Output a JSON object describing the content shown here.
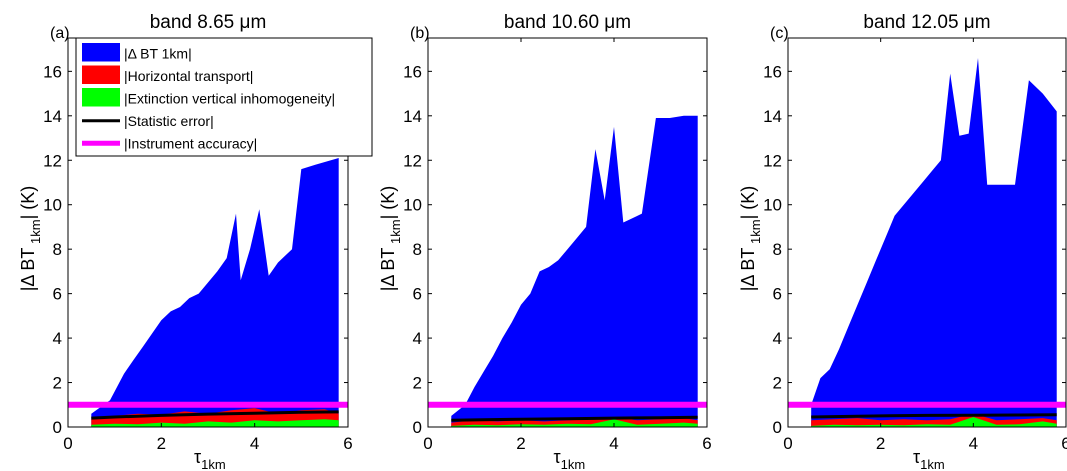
{
  "chart_data": [
    {
      "type": "area",
      "panel_label": "(a)",
      "title": "band 8.65   μm",
      "xlabel": "τ",
      "xlabel_sub": "1km",
      "ylabel": "|Δ BT",
      "ylabel_sub": "1km",
      "ylabel_tail": "| (K)",
      "xlim": [
        0,
        6
      ],
      "ylim": [
        0,
        17.5
      ],
      "xticks": [
        "0",
        "2",
        "4",
        "6"
      ],
      "yticks": [
        "0",
        "2",
        "4",
        "6",
        "8",
        "10",
        "12",
        "14",
        "16"
      ],
      "series": [
        {
          "name": "|Δ BT 1km|",
          "color": "#0000ff",
          "x": [
            0.5,
            0.9,
            1.0,
            1.2,
            1.4,
            1.6,
            1.8,
            2.0,
            2.2,
            2.4,
            2.6,
            2.8,
            3.0,
            3.2,
            3.4,
            3.6,
            3.7,
            3.9,
            4.1,
            4.3,
            4.5,
            4.8,
            5.0,
            5.3,
            5.8
          ],
          "y": [
            0.6,
            1.2,
            1.6,
            2.4,
            3.0,
            3.6,
            4.2,
            4.8,
            5.2,
            5.4,
            5.8,
            6.0,
            6.5,
            7.0,
            7.6,
            9.6,
            6.6,
            8.0,
            9.8,
            6.8,
            7.4,
            8.0,
            11.6,
            11.8,
            12.1
          ]
        },
        {
          "name": "|Horizontal transport|",
          "color": "#ff0000",
          "x": [
            0.5,
            1.0,
            1.5,
            2.0,
            2.5,
            3.0,
            3.5,
            4.0,
            4.5,
            5.0,
            5.5,
            5.8
          ],
          "y": [
            0.35,
            0.5,
            0.6,
            0.55,
            0.7,
            0.6,
            0.75,
            0.85,
            0.6,
            0.75,
            0.8,
            0.6
          ]
        },
        {
          "name": "|Extinction vertical inhomogeneity|",
          "color": "#00ff00",
          "x": [
            0.5,
            1.0,
            1.5,
            2.0,
            2.5,
            3.0,
            3.5,
            4.0,
            4.5,
            5.0,
            5.5,
            5.8
          ],
          "y": [
            0.1,
            0.15,
            0.12,
            0.2,
            0.15,
            0.25,
            0.2,
            0.3,
            0.25,
            0.3,
            0.35,
            0.3
          ]
        },
        {
          "name": "|Statistic error|",
          "color": "#000000",
          "x": [
            0.5,
            1.0,
            2.0,
            3.0,
            4.0,
            5.0,
            5.8
          ],
          "y": [
            0.4,
            0.45,
            0.52,
            0.58,
            0.62,
            0.66,
            0.68
          ]
        },
        {
          "name": "|Instrument accuracy|",
          "color": "#ff00ff",
          "x": [
            0.0,
            6.0
          ],
          "y": [
            1.0,
            1.0
          ]
        }
      ],
      "legend": [
        "|Δ BT 1km|",
        "|Horizontal transport|",
        "|Extinction vertical inhomogeneity|",
        "|Statistic error|",
        "|Instrument accuracy|"
      ],
      "legend_location": "top-left"
    },
    {
      "type": "area",
      "panel_label": "(b)",
      "title": "band 10.60   μm",
      "xlabel": "τ",
      "xlabel_sub": "1km",
      "ylabel": "|Δ BT",
      "ylabel_sub": "1km",
      "ylabel_tail": "| (K)",
      "xlim": [
        0,
        6
      ],
      "ylim": [
        0,
        17.5
      ],
      "xticks": [
        "0",
        "2",
        "4",
        "6"
      ],
      "yticks": [
        "0",
        "2",
        "4",
        "6",
        "8",
        "10",
        "12",
        "14",
        "16"
      ],
      "series": [
        {
          "name": "|Δ BT 1km|",
          "color": "#0000ff",
          "x": [
            0.5,
            0.8,
            1.0,
            1.2,
            1.4,
            1.6,
            1.8,
            2.0,
            2.2,
            2.4,
            2.6,
            2.8,
            3.0,
            3.2,
            3.4,
            3.6,
            3.8,
            4.0,
            4.2,
            4.4,
            4.6,
            4.9,
            5.2,
            5.5,
            5.8
          ],
          "y": [
            0.5,
            1.0,
            1.8,
            2.5,
            3.2,
            4.0,
            4.7,
            5.5,
            6.0,
            7.0,
            7.2,
            7.5,
            8.0,
            8.5,
            9.0,
            12.5,
            10.2,
            13.5,
            9.2,
            9.4,
            9.6,
            13.9,
            13.9,
            14.0,
            14.0
          ]
        },
        {
          "name": "|Horizontal transport|",
          "color": "#ff0000",
          "x": [
            0.5,
            1.0,
            1.5,
            2.0,
            2.5,
            3.0,
            3.5,
            4.0,
            4.5,
            5.0,
            5.5,
            5.8
          ],
          "y": [
            0.2,
            0.3,
            0.25,
            0.3,
            0.25,
            0.3,
            0.35,
            0.45,
            0.3,
            0.35,
            0.4,
            0.3
          ]
        },
        {
          "name": "|Extinction vertical inhomogeneity|",
          "color": "#00ff00",
          "x": [
            0.5,
            1.0,
            1.5,
            2.0,
            2.5,
            3.0,
            3.5,
            4.0,
            4.5,
            5.0,
            5.5,
            5.8
          ],
          "y": [
            0.05,
            0.1,
            0.08,
            0.12,
            0.1,
            0.15,
            0.12,
            0.35,
            0.1,
            0.15,
            0.2,
            0.15
          ]
        },
        {
          "name": "|Statistic error|",
          "color": "#000000",
          "x": [
            0.5,
            1.0,
            2.0,
            3.0,
            4.0,
            5.0,
            5.8
          ],
          "y": [
            0.3,
            0.32,
            0.35,
            0.37,
            0.4,
            0.42,
            0.44
          ]
        },
        {
          "name": "|Instrument accuracy|",
          "color": "#ff00ff",
          "x": [
            0.0,
            6.0
          ],
          "y": [
            1.0,
            1.0
          ]
        }
      ]
    },
    {
      "type": "area",
      "panel_label": "(c)",
      "title": "band 12.05   μm",
      "xlabel": "τ",
      "xlabel_sub": "1km",
      "ylabel": "|Δ BT",
      "ylabel_sub": "1km",
      "ylabel_tail": "| (K)",
      "xlim": [
        0,
        6
      ],
      "ylim": [
        0,
        17.5
      ],
      "xticks": [
        "0",
        "2",
        "4",
        "6"
      ],
      "yticks": [
        "0",
        "2",
        "4",
        "6",
        "8",
        "10",
        "12",
        "14",
        "16"
      ],
      "series": [
        {
          "name": "|Δ BT 1km|",
          "color": "#0000ff",
          "x": [
            0.5,
            0.7,
            0.9,
            1.1,
            1.3,
            1.5,
            1.7,
            1.9,
            2.1,
            2.3,
            2.5,
            2.7,
            2.9,
            3.1,
            3.3,
            3.5,
            3.7,
            3.9,
            4.1,
            4.3,
            4.6,
            4.9,
            5.2,
            5.5,
            5.8
          ],
          "y": [
            1.0,
            2.2,
            2.6,
            3.5,
            4.5,
            5.5,
            6.5,
            7.5,
            8.5,
            9.5,
            10.0,
            10.5,
            11.0,
            11.5,
            12.0,
            15.9,
            13.1,
            13.2,
            16.6,
            10.9,
            10.9,
            10.9,
            15.6,
            15.0,
            14.2
          ]
        },
        {
          "name": "|Horizontal transport|",
          "color": "#ff0000",
          "x": [
            0.5,
            1.0,
            1.5,
            2.0,
            2.5,
            3.0,
            3.5,
            4.0,
            4.5,
            5.0,
            5.5,
            5.8
          ],
          "y": [
            0.3,
            0.35,
            0.4,
            0.3,
            0.35,
            0.3,
            0.35,
            0.6,
            0.3,
            0.35,
            0.4,
            0.3
          ]
        },
        {
          "name": "|Extinction vertical inhomogeneity|",
          "color": "#00ff00",
          "x": [
            0.5,
            1.0,
            1.5,
            2.0,
            2.5,
            3.0,
            3.5,
            4.0,
            4.5,
            5.0,
            5.5,
            5.8
          ],
          "y": [
            0.05,
            0.1,
            0.08,
            0.1,
            0.08,
            0.12,
            0.1,
            0.45,
            0.1,
            0.12,
            0.25,
            0.15
          ]
        },
        {
          "name": "|Statistic error|",
          "color": "#000000",
          "x": [
            0.5,
            1.0,
            2.0,
            3.0,
            4.0,
            5.0,
            5.8
          ],
          "y": [
            0.45,
            0.47,
            0.5,
            0.52,
            0.53,
            0.54,
            0.55
          ]
        },
        {
          "name": "|Instrument accuracy|",
          "color": "#ff00ff",
          "x": [
            0.0,
            6.0
          ],
          "y": [
            1.0,
            1.0
          ]
        }
      ]
    }
  ]
}
